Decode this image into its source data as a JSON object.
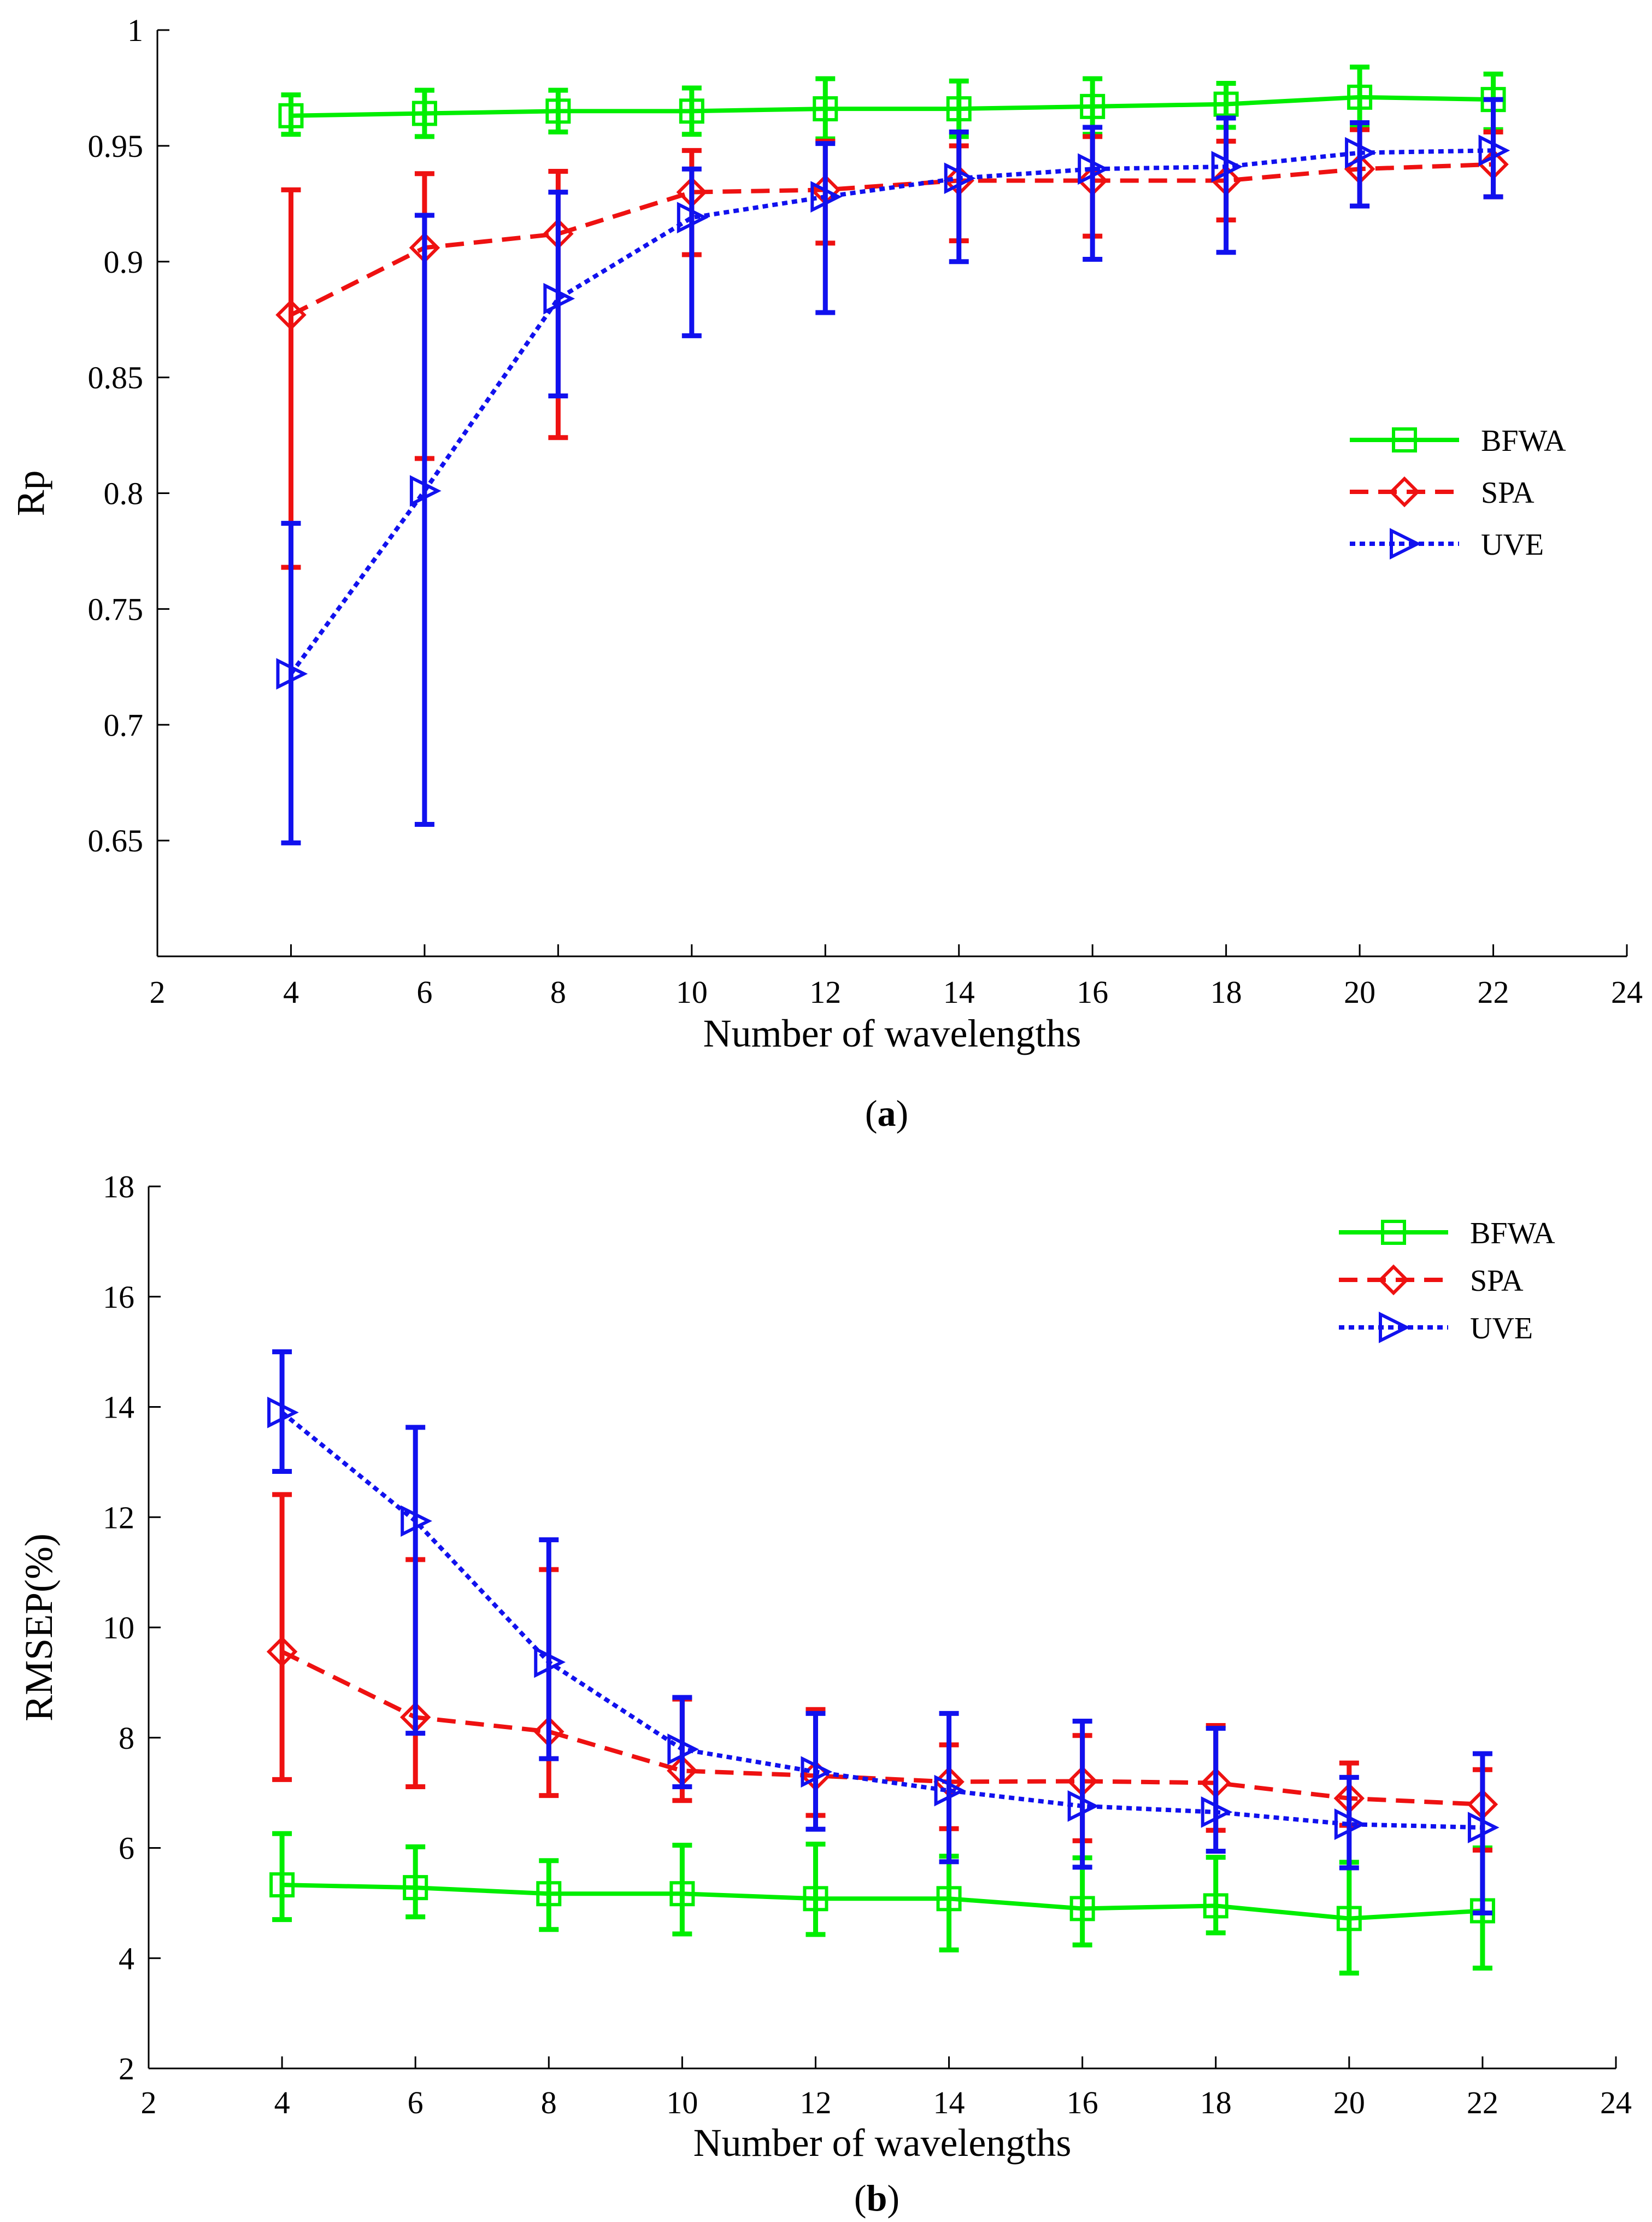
{
  "chart_data": [
    {
      "type": "line",
      "panel_label": "a",
      "title": "",
      "xlabel": "Number of wavelengths",
      "ylabel": "Rp",
      "xlim": [
        2,
        24
      ],
      "ylim": [
        0.6,
        1.0
      ],
      "xticks": [
        "2",
        "4",
        "6",
        "8",
        "10",
        "12",
        "14",
        "16",
        "18",
        "20",
        "22",
        "24"
      ],
      "yticks": [
        "0.65",
        "0.7",
        "0.75",
        "0.8",
        "0.85",
        "0.9",
        "0.95",
        "1"
      ],
      "legend_position": "right",
      "x": [
        4,
        6,
        8,
        10,
        12,
        14,
        16,
        18,
        20,
        22
      ],
      "series": [
        {
          "name": "BFWA",
          "color": "#00ee00",
          "line_style": "solid",
          "marker": "square",
          "values": [
            0.963,
            0.964,
            0.965,
            0.965,
            0.966,
            0.966,
            0.967,
            0.968,
            0.971,
            0.97
          ],
          "err_low": [
            0.955,
            0.954,
            0.956,
            0.955,
            0.953,
            0.954,
            0.955,
            0.958,
            0.958,
            0.957
          ],
          "err_high": [
            0.972,
            0.974,
            0.974,
            0.975,
            0.979,
            0.978,
            0.979,
            0.977,
            0.984,
            0.981
          ]
        },
        {
          "name": "SPA",
          "color": "#ee1111",
          "line_style": "dashed",
          "marker": "diamond",
          "values": [
            0.877,
            0.906,
            0.912,
            0.93,
            0.931,
            0.935,
            0.935,
            0.935,
            0.94,
            0.942
          ],
          "err_low": [
            0.768,
            0.815,
            0.824,
            0.903,
            0.908,
            0.909,
            0.911,
            0.918,
            0.924,
            0.928
          ],
          "err_high": [
            0.931,
            0.938,
            0.939,
            0.948,
            0.952,
            0.95,
            0.954,
            0.952,
            0.957,
            0.956
          ]
        },
        {
          "name": "UVE",
          "color": "#1111ee",
          "line_style": "dotted",
          "marker": "triangle-right",
          "values": [
            0.722,
            0.801,
            0.884,
            0.919,
            0.928,
            0.936,
            0.94,
            0.941,
            0.947,
            0.948
          ],
          "err_low": [
            0.649,
            0.657,
            0.842,
            0.868,
            0.878,
            0.9,
            0.901,
            0.904,
            0.924,
            0.928
          ],
          "err_high": [
            0.787,
            0.92,
            0.93,
            0.94,
            0.951,
            0.956,
            0.958,
            0.962,
            0.96,
            0.97
          ]
        }
      ],
      "caption": "(a)"
    },
    {
      "type": "line",
      "panel_label": "b",
      "title": "",
      "xlabel": "Number of wavelengths",
      "ylabel": "RMSEP(%)",
      "xlim": [
        2,
        24
      ],
      "ylim": [
        2,
        18
      ],
      "xticks": [
        "2",
        "4",
        "6",
        "8",
        "10",
        "12",
        "14",
        "16",
        "18",
        "20",
        "22",
        "24"
      ],
      "yticks": [
        "2",
        "4",
        "6",
        "8",
        "10",
        "12",
        "14",
        "16",
        "18"
      ],
      "legend_position": "top-right",
      "x": [
        4,
        6,
        8,
        10,
        12,
        14,
        16,
        18,
        20,
        22
      ],
      "series": [
        {
          "name": "BFWA",
          "color": "#00ee00",
          "line_style": "solid",
          "marker": "square",
          "values": [
            5.33,
            5.28,
            5.17,
            5.17,
            5.08,
            5.08,
            4.9,
            4.95,
            4.72,
            4.86
          ],
          "err_low": [
            4.7,
            4.75,
            4.52,
            4.44,
            4.43,
            4.15,
            4.24,
            4.46,
            3.73,
            3.82
          ],
          "err_high": [
            6.26,
            6.02,
            5.77,
            6.05,
            6.07,
            5.85,
            5.82,
            5.83,
            5.74,
            6.0
          ]
        },
        {
          "name": "SPA",
          "color": "#ee1111",
          "line_style": "dashed",
          "marker": "diamond",
          "values": [
            9.56,
            8.37,
            8.11,
            7.4,
            7.31,
            7.2,
            7.21,
            7.18,
            6.9,
            6.79
          ],
          "err_low": [
            7.24,
            7.11,
            6.95,
            6.86,
            6.59,
            6.35,
            6.13,
            6.32,
            6.41,
            5.96
          ],
          "err_high": [
            12.41,
            11.23,
            11.05,
            8.7,
            8.51,
            7.87,
            8.04,
            8.22,
            7.54,
            7.42
          ]
        },
        {
          "name": "UVE",
          "color": "#1111ee",
          "line_style": "dotted",
          "marker": "triangle-right",
          "values": [
            13.9,
            11.93,
            9.37,
            7.79,
            7.38,
            7.04,
            6.76,
            6.65,
            6.43,
            6.37
          ],
          "err_low": [
            12.83,
            8.08,
            7.62,
            7.11,
            6.34,
            5.75,
            5.65,
            5.94,
            5.64,
            4.82
          ],
          "err_high": [
            15.0,
            13.63,
            11.59,
            8.73,
            8.44,
            8.44,
            8.3,
            8.17,
            7.28,
            7.71
          ]
        }
      ],
      "caption": "(b)"
    }
  ]
}
